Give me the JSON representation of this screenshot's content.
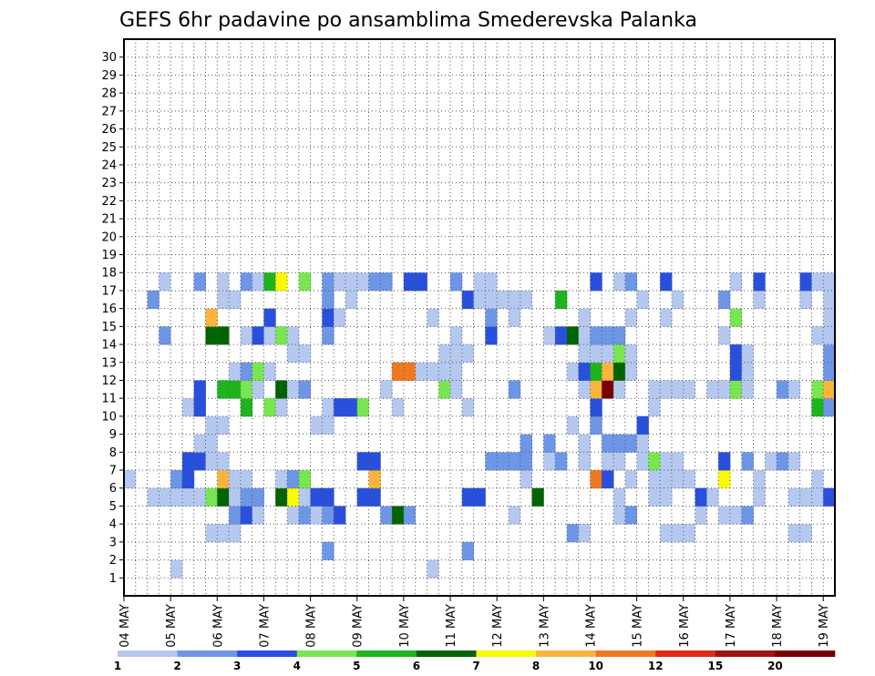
{
  "chart_data": {
    "type": "heatmap",
    "title": "GEFS 6hr padavine po ansamblima Smederevska Palanka",
    "xlabel": "",
    "ylabel": "",
    "x_ticks": [
      "04 MAY",
      "05 MAY",
      "06 MAY",
      "07 MAY",
      "08 MAY",
      "09 MAY",
      "10 MAY",
      "11 MAY",
      "12 MAY",
      "13 MAY",
      "14 MAY",
      "15 MAY",
      "16 MAY",
      "17 MAY",
      "18 MAY",
      "19 MAY"
    ],
    "y_ticks": [
      1,
      2,
      3,
      4,
      5,
      6,
      7,
      8,
      9,
      10,
      11,
      12,
      13,
      14,
      15,
      16,
      17,
      18,
      19,
      20,
      21,
      22,
      23,
      24,
      25,
      26,
      27,
      28,
      29,
      30
    ],
    "x_columns": 61,
    "y_rows": 31,
    "grid": true,
    "legend": {
      "placement": "bottom",
      "colors": [
        "#b4c8f0",
        "#6e96e6",
        "#2850dc",
        "#78e650",
        "#1eb41e",
        "#006400",
        "#fafa00",
        "#fab43c",
        "#f0781e",
        "#dc2d14",
        "#a01414",
        "#780000"
      ],
      "labels": [
        "1",
        "2",
        "3",
        "4",
        "5",
        "6",
        "7",
        "8",
        "10",
        "12",
        "15",
        "20"
      ]
    },
    "cells": [
      [
        4,
        1,
        1
      ],
      [
        26,
        1,
        1
      ],
      [
        17,
        2,
        2
      ],
      [
        29,
        2,
        2
      ],
      [
        7,
        3,
        1
      ],
      [
        8,
        3,
        1
      ],
      [
        9,
        3,
        1
      ],
      [
        38,
        3,
        2
      ],
      [
        39,
        3,
        1
      ],
      [
        46,
        3,
        1
      ],
      [
        47,
        3,
        1
      ],
      [
        48,
        3,
        1
      ],
      [
        57,
        3,
        1
      ],
      [
        58,
        3,
        1
      ],
      [
        9,
        4,
        2
      ],
      [
        10,
        4,
        3
      ],
      [
        11,
        4,
        1
      ],
      [
        14,
        4,
        1
      ],
      [
        15,
        4,
        2
      ],
      [
        16,
        4,
        1
      ],
      [
        17,
        4,
        2
      ],
      [
        18,
        4,
        3
      ],
      [
        22,
        4,
        2
      ],
      [
        23,
        4,
        6
      ],
      [
        24,
        4,
        2
      ],
      [
        33,
        4,
        1
      ],
      [
        42,
        4,
        1
      ],
      [
        43,
        4,
        2
      ],
      [
        49,
        4,
        1
      ],
      [
        51,
        4,
        1
      ],
      [
        52,
        4,
        1
      ],
      [
        53,
        4,
        2
      ],
      [
        2,
        5,
        1
      ],
      [
        3,
        5,
        1
      ],
      [
        4,
        5,
        1
      ],
      [
        5,
        5,
        1
      ],
      [
        6,
        5,
        1
      ],
      [
        7,
        5,
        4
      ],
      [
        8,
        5,
        6
      ],
      [
        9,
        5,
        1
      ],
      [
        10,
        5,
        2
      ],
      [
        11,
        5,
        2
      ],
      [
        13,
        5,
        6
      ],
      [
        14,
        5,
        7
      ],
      [
        15,
        5,
        1
      ],
      [
        16,
        5,
        3
      ],
      [
        17,
        5,
        3
      ],
      [
        20,
        5,
        3
      ],
      [
        21,
        5,
        3
      ],
      [
        29,
        5,
        3
      ],
      [
        30,
        5,
        3
      ],
      [
        35,
        5,
        6
      ],
      [
        42,
        5,
        1
      ],
      [
        45,
        5,
        1
      ],
      [
        46,
        5,
        1
      ],
      [
        49,
        5,
        3
      ],
      [
        50,
        5,
        1
      ],
      [
        54,
        5,
        1
      ],
      [
        57,
        5,
        1
      ],
      [
        58,
        5,
        1
      ],
      [
        59,
        5,
        1
      ],
      [
        60,
        5,
        3
      ],
      [
        0,
        6,
        1
      ],
      [
        4,
        6,
        2
      ],
      [
        5,
        6,
        3
      ],
      [
        8,
        6,
        8
      ],
      [
        9,
        6,
        1
      ],
      [
        10,
        6,
        1
      ],
      [
        13,
        6,
        1
      ],
      [
        14,
        6,
        2
      ],
      [
        15,
        6,
        4
      ],
      [
        21,
        6,
        8
      ],
      [
        34,
        6,
        1
      ],
      [
        40,
        6,
        9
      ],
      [
        41,
        6,
        3
      ],
      [
        43,
        6,
        1
      ],
      [
        45,
        6,
        1
      ],
      [
        46,
        6,
        1
      ],
      [
        47,
        6,
        1
      ],
      [
        48,
        6,
        1
      ],
      [
        51,
        6,
        7
      ],
      [
        54,
        6,
        1
      ],
      [
        59,
        6,
        1
      ],
      [
        5,
        7,
        3
      ],
      [
        6,
        7,
        3
      ],
      [
        7,
        7,
        1
      ],
      [
        8,
        7,
        1
      ],
      [
        20,
        7,
        3
      ],
      [
        21,
        7,
        3
      ],
      [
        31,
        7,
        2
      ],
      [
        32,
        7,
        2
      ],
      [
        33,
        7,
        2
      ],
      [
        34,
        7,
        2
      ],
      [
        36,
        7,
        1
      ],
      [
        37,
        7,
        2
      ],
      [
        39,
        7,
        1
      ],
      [
        41,
        7,
        1
      ],
      [
        42,
        7,
        1
      ],
      [
        44,
        7,
        1
      ],
      [
        45,
        7,
        4
      ],
      [
        46,
        7,
        1
      ],
      [
        47,
        7,
        1
      ],
      [
        51,
        7,
        3
      ],
      [
        53,
        7,
        2
      ],
      [
        55,
        7,
        1
      ],
      [
        56,
        7,
        2
      ],
      [
        57,
        7,
        1
      ],
      [
        6,
        8,
        1
      ],
      [
        7,
        8,
        1
      ],
      [
        34,
        8,
        2
      ],
      [
        36,
        8,
        2
      ],
      [
        39,
        8,
        1
      ],
      [
        41,
        8,
        2
      ],
      [
        42,
        8,
        2
      ],
      [
        43,
        8,
        2
      ],
      [
        44,
        8,
        1
      ],
      [
        7,
        9,
        1
      ],
      [
        8,
        9,
        1
      ],
      [
        16,
        9,
        1
      ],
      [
        17,
        9,
        1
      ],
      [
        38,
        9,
        1
      ],
      [
        40,
        9,
        2
      ],
      [
        44,
        9,
        3
      ],
      [
        5,
        10,
        1
      ],
      [
        6,
        10,
        3
      ],
      [
        10,
        10,
        5
      ],
      [
        12,
        10,
        4
      ],
      [
        13,
        10,
        1
      ],
      [
        17,
        10,
        1
      ],
      [
        18,
        10,
        3
      ],
      [
        19,
        10,
        3
      ],
      [
        20,
        10,
        4
      ],
      [
        23,
        10,
        1
      ],
      [
        29,
        10,
        1
      ],
      [
        40,
        10,
        3
      ],
      [
        45,
        10,
        1
      ],
      [
        59,
        10,
        5
      ],
      [
        60,
        10,
        2
      ],
      [
        6,
        11,
        3
      ],
      [
        8,
        11,
        5
      ],
      [
        9,
        11,
        5
      ],
      [
        10,
        11,
        4
      ],
      [
        11,
        11,
        1
      ],
      [
        13,
        11,
        6
      ],
      [
        14,
        11,
        1
      ],
      [
        15,
        11,
        2
      ],
      [
        22,
        11,
        1
      ],
      [
        27,
        11,
        4
      ],
      [
        28,
        11,
        1
      ],
      [
        33,
        11,
        2
      ],
      [
        39,
        11,
        1
      ],
      [
        40,
        11,
        8
      ],
      [
        41,
        11,
        12
      ],
      [
        42,
        11,
        1
      ],
      [
        45,
        11,
        1
      ],
      [
        46,
        11,
        1
      ],
      [
        47,
        11,
        1
      ],
      [
        48,
        11,
        1
      ],
      [
        50,
        11,
        1
      ],
      [
        51,
        11,
        1
      ],
      [
        52,
        11,
        4
      ],
      [
        53,
        11,
        1
      ],
      [
        56,
        11,
        2
      ],
      [
        57,
        11,
        1
      ],
      [
        59,
        11,
        4
      ],
      [
        60,
        11,
        8
      ],
      [
        9,
        12,
        1
      ],
      [
        10,
        12,
        2
      ],
      [
        11,
        12,
        4
      ],
      [
        12,
        12,
        1
      ],
      [
        23,
        12,
        9
      ],
      [
        24,
        12,
        9
      ],
      [
        25,
        12,
        1
      ],
      [
        26,
        12,
        1
      ],
      [
        27,
        12,
        1
      ],
      [
        28,
        12,
        1
      ],
      [
        38,
        12,
        1
      ],
      [
        39,
        12,
        3
      ],
      [
        40,
        12,
        5
      ],
      [
        41,
        12,
        8
      ],
      [
        42,
        12,
        6
      ],
      [
        43,
        12,
        1
      ],
      [
        52,
        12,
        3
      ],
      [
        53,
        12,
        1
      ],
      [
        60,
        12,
        2
      ],
      [
        14,
        13,
        1
      ],
      [
        15,
        13,
        1
      ],
      [
        27,
        13,
        1
      ],
      [
        28,
        13,
        1
      ],
      [
        29,
        13,
        1
      ],
      [
        39,
        13,
        1
      ],
      [
        40,
        13,
        1
      ],
      [
        41,
        13,
        1
      ],
      [
        42,
        13,
        4
      ],
      [
        43,
        13,
        1
      ],
      [
        52,
        13,
        3
      ],
      [
        53,
        13,
        1
      ],
      [
        60,
        13,
        2
      ],
      [
        3,
        14,
        2
      ],
      [
        7,
        14,
        6
      ],
      [
        8,
        14,
        6
      ],
      [
        10,
        14,
        1
      ],
      [
        11,
        14,
        3
      ],
      [
        12,
        14,
        1
      ],
      [
        13,
        14,
        4
      ],
      [
        14,
        14,
        1
      ],
      [
        17,
        14,
        2
      ],
      [
        28,
        14,
        1
      ],
      [
        31,
        14,
        3
      ],
      [
        36,
        14,
        1
      ],
      [
        37,
        14,
        3
      ],
      [
        38,
        14,
        6
      ],
      [
        39,
        14,
        1
      ],
      [
        40,
        14,
        2
      ],
      [
        41,
        14,
        2
      ],
      [
        42,
        14,
        2
      ],
      [
        51,
        14,
        1
      ],
      [
        59,
        14,
        1
      ],
      [
        60,
        14,
        1
      ],
      [
        7,
        15,
        8
      ],
      [
        12,
        15,
        3
      ],
      [
        17,
        15,
        3
      ],
      [
        18,
        15,
        1
      ],
      [
        26,
        15,
        1
      ],
      [
        31,
        15,
        2
      ],
      [
        33,
        15,
        1
      ],
      [
        39,
        15,
        1
      ],
      [
        43,
        15,
        1
      ],
      [
        46,
        15,
        1
      ],
      [
        52,
        15,
        4
      ],
      [
        60,
        15,
        1
      ],
      [
        2,
        16,
        2
      ],
      [
        8,
        16,
        1
      ],
      [
        9,
        16,
        1
      ],
      [
        17,
        16,
        2
      ],
      [
        19,
        16,
        1
      ],
      [
        29,
        16,
        3
      ],
      [
        30,
        16,
        1
      ],
      [
        31,
        16,
        1
      ],
      [
        32,
        16,
        1
      ],
      [
        33,
        16,
        1
      ],
      [
        34,
        16,
        1
      ],
      [
        37,
        16,
        5
      ],
      [
        44,
        16,
        1
      ],
      [
        47,
        16,
        1
      ],
      [
        51,
        16,
        2
      ],
      [
        54,
        16,
        1
      ],
      [
        58,
        16,
        1
      ],
      [
        60,
        16,
        1
      ],
      [
        3,
        17,
        1
      ],
      [
        6,
        17,
        2
      ],
      [
        8,
        17,
        1
      ],
      [
        10,
        17,
        2
      ],
      [
        11,
        17,
        1
      ],
      [
        12,
        17,
        5
      ],
      [
        13,
        17,
        7
      ],
      [
        15,
        17,
        4
      ],
      [
        17,
        17,
        2
      ],
      [
        18,
        17,
        1
      ],
      [
        19,
        17,
        1
      ],
      [
        20,
        17,
        1
      ],
      [
        21,
        17,
        2
      ],
      [
        22,
        17,
        2
      ],
      [
        24,
        17,
        3
      ],
      [
        25,
        17,
        3
      ],
      [
        28,
        17,
        2
      ],
      [
        30,
        17,
        1
      ],
      [
        31,
        17,
        1
      ],
      [
        40,
        17,
        3
      ],
      [
        42,
        17,
        1
      ],
      [
        43,
        17,
        2
      ],
      [
        46,
        17,
        3
      ],
      [
        52,
        17,
        1
      ],
      [
        54,
        17,
        3
      ],
      [
        58,
        17,
        3
      ],
      [
        59,
        17,
        1
      ],
      [
        60,
        17,
        1
      ]
    ]
  }
}
